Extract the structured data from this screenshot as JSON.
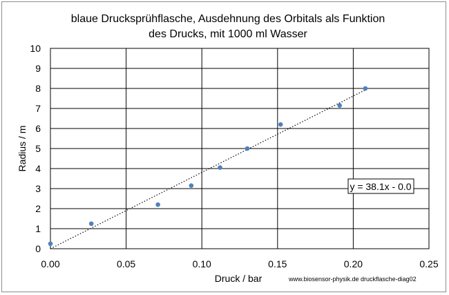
{
  "chart_data": {
    "type": "scatter",
    "title_lines": [
      "blaue Drucksprühflasche, Ausdehnung des Orbitals als Funktion",
      "des Drucks, mit 1000 ml Wasser"
    ],
    "xlabel": "Druck / bar",
    "ylabel": "Radius / m",
    "xlim": [
      0,
      0.25
    ],
    "ylim": [
      0,
      10
    ],
    "x_ticks": [
      0,
      0.05,
      0.1,
      0.15,
      0.2,
      0.25
    ],
    "x_tick_labels": [
      "0.00",
      "0.05",
      "0.10",
      "0.15",
      "0.20",
      "0.25"
    ],
    "y_ticks": [
      0,
      1,
      2,
      3,
      4,
      5,
      6,
      7,
      8,
      9,
      10
    ],
    "y_tick_labels": [
      "0",
      "1",
      "2",
      "3",
      "4",
      "5",
      "6",
      "7",
      "8",
      "9",
      "10"
    ],
    "grid": true,
    "point_color": "#4f81bd",
    "series": [
      {
        "x": [
          0.0,
          0.027,
          0.071,
          0.093,
          0.112,
          0.13,
          0.152,
          0.191,
          0.208
        ],
        "y": [
          0.25,
          1.25,
          2.2,
          3.15,
          4.05,
          5.0,
          6.2,
          7.15,
          8.0
        ]
      }
    ],
    "trendline": {
      "slope": 38.1,
      "intercept": 0.0,
      "x_range": [
        0,
        0.208
      ],
      "style": "dotted"
    },
    "equation_label": "y = 38.1x - 0.0",
    "source_note": "www.biosensor-physik.de druckflasche-diag02"
  }
}
